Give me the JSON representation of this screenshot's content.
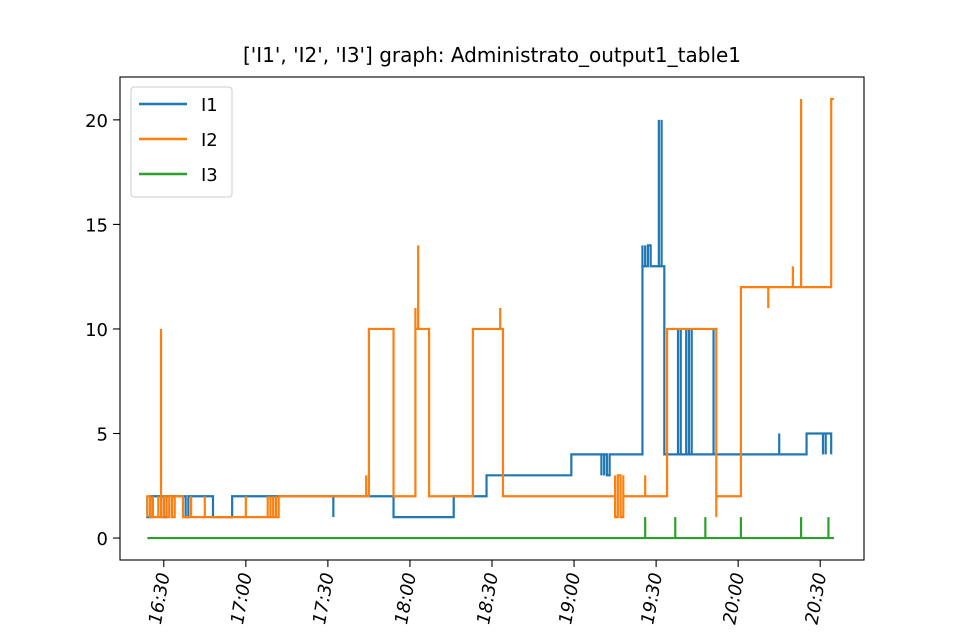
{
  "chart_data": {
    "type": "line",
    "title": "['I1', 'I2', 'I3'] graph: Administrato_output1_table1",
    "xlabel": "",
    "ylabel": "",
    "x_unit": "time (HH:MM)",
    "xlim": [
      "16:14",
      "20:46"
    ],
    "ylim": [
      -1.05,
      22.05
    ],
    "yticks": [
      0,
      5,
      10,
      15,
      20
    ],
    "xticks": [
      "16:30",
      "17:00",
      "17:30",
      "18:00",
      "18:30",
      "19:00",
      "19:30",
      "20:00",
      "20:30"
    ],
    "legend": {
      "placement": "top-left"
    },
    "grid": false,
    "series": [
      {
        "name": "I1",
        "color": "#1f77b4",
        "points": [
          [
            "16:24",
            2
          ],
          [
            "16:24",
            1
          ],
          [
            "16:25",
            1
          ],
          [
            "16:25",
            2
          ],
          [
            "16:26",
            2
          ],
          [
            "16:26",
            1
          ],
          [
            "16:26",
            2
          ],
          [
            "16:30",
            2
          ],
          [
            "16:30",
            1
          ],
          [
            "16:31",
            1
          ],
          [
            "16:31",
            2
          ],
          [
            "16:38",
            2
          ],
          [
            "16:38",
            1
          ],
          [
            "16:39",
            1
          ],
          [
            "16:39",
            2
          ],
          [
            "16:48",
            2
          ],
          [
            "16:48",
            1
          ],
          [
            "16:55",
            1
          ],
          [
            "16:55",
            2
          ],
          [
            "17:32",
            2
          ],
          [
            "17:32",
            1
          ],
          [
            "17:32",
            2
          ],
          [
            "17:54",
            2
          ],
          [
            "17:54",
            1
          ],
          [
            "18:16",
            1
          ],
          [
            "18:16",
            2
          ],
          [
            "18:28",
            2
          ],
          [
            "18:28",
            3
          ],
          [
            "18:59",
            3
          ],
          [
            "18:59",
            4
          ],
          [
            "19:10",
            4
          ],
          [
            "19:10",
            3
          ],
          [
            "19:10",
            4
          ],
          [
            "19:11",
            4
          ],
          [
            "19:11",
            3
          ],
          [
            "19:11",
            4
          ],
          [
            "19:12",
            4
          ],
          [
            "19:12",
            3
          ],
          [
            "19:13",
            3
          ],
          [
            "19:13",
            4
          ],
          [
            "19:25",
            4
          ],
          [
            "19:25",
            14
          ],
          [
            "19:25",
            13
          ],
          [
            "19:26",
            13
          ],
          [
            "19:26",
            14
          ],
          [
            "19:26",
            13
          ],
          [
            "19:27",
            13
          ],
          [
            "19:27",
            14
          ],
          [
            "19:28",
            14
          ],
          [
            "19:28",
            13
          ],
          [
            "19:31",
            13
          ],
          [
            "19:31",
            20
          ],
          [
            "19:31",
            13
          ],
          [
            "19:32",
            13
          ],
          [
            "19:32",
            20
          ],
          [
            "19:32",
            13
          ],
          [
            "19:33",
            13
          ],
          [
            "19:33",
            4
          ],
          [
            "19:38",
            4
          ],
          [
            "19:38",
            10
          ],
          [
            "19:38",
            4
          ],
          [
            "19:39",
            4
          ],
          [
            "19:39",
            10
          ],
          [
            "19:39",
            4
          ],
          [
            "19:41",
            4
          ],
          [
            "19:41",
            10
          ],
          [
            "19:41",
            4
          ],
          [
            "19:42",
            4
          ],
          [
            "19:42",
            10
          ],
          [
            "19:42",
            4
          ],
          [
            "19:43",
            4
          ],
          [
            "19:43",
            10
          ],
          [
            "19:43",
            4
          ],
          [
            "19:51",
            4
          ],
          [
            "19:51",
            10
          ],
          [
            "19:51",
            4
          ],
          [
            "20:15",
            4
          ],
          [
            "20:15",
            5
          ],
          [
            "20:15",
            4
          ],
          [
            "20:25",
            4
          ],
          [
            "20:25",
            5
          ],
          [
            "20:31",
            5
          ],
          [
            "20:31",
            4
          ],
          [
            "20:31",
            5
          ],
          [
            "20:32",
            5
          ],
          [
            "20:32",
            4
          ],
          [
            "20:32",
            5
          ],
          [
            "20:34",
            5
          ],
          [
            "20:34",
            4
          ],
          [
            "20:34",
            5
          ]
        ]
      },
      {
        "name": "I2",
        "color": "#ff7f0e",
        "points": [
          [
            "16:24",
            1
          ],
          [
            "16:24",
            2
          ],
          [
            "16:25",
            2
          ],
          [
            "16:25",
            1
          ],
          [
            "16:26",
            1
          ],
          [
            "16:26",
            2
          ],
          [
            "16:26",
            1
          ],
          [
            "16:28",
            1
          ],
          [
            "16:28",
            2
          ],
          [
            "16:28",
            1
          ],
          [
            "16:29",
            1
          ],
          [
            "16:29",
            10
          ],
          [
            "16:29",
            1
          ],
          [
            "16:30",
            1
          ],
          [
            "16:30",
            2
          ],
          [
            "16:31",
            2
          ],
          [
            "16:31",
            1
          ],
          [
            "16:32",
            1
          ],
          [
            "16:32",
            2
          ],
          [
            "16:33",
            2
          ],
          [
            "16:33",
            1
          ],
          [
            "16:34",
            1
          ],
          [
            "16:34",
            2
          ],
          [
            "16:37",
            2
          ],
          [
            "16:37",
            1
          ],
          [
            "16:40",
            1
          ],
          [
            "16:40",
            2
          ],
          [
            "16:40",
            1
          ],
          [
            "16:45",
            1
          ],
          [
            "16:45",
            2
          ],
          [
            "16:45",
            1
          ],
          [
            "17:00",
            1
          ],
          [
            "17:00",
            2
          ],
          [
            "17:00",
            1
          ],
          [
            "17:08",
            1
          ],
          [
            "17:08",
            2
          ],
          [
            "17:08",
            1
          ],
          [
            "17:09",
            1
          ],
          [
            "17:09",
            2
          ],
          [
            "17:09",
            1
          ],
          [
            "17:10",
            1
          ],
          [
            "17:10",
            2
          ],
          [
            "17:10",
            1
          ],
          [
            "17:11",
            1
          ],
          [
            "17:11",
            2
          ],
          [
            "17:11",
            1
          ],
          [
            "17:12",
            1
          ],
          [
            "17:12",
            2
          ],
          [
            "17:44",
            2
          ],
          [
            "17:44",
            3
          ],
          [
            "17:44",
            2
          ],
          [
            "17:45",
            2
          ],
          [
            "17:45",
            10
          ],
          [
            "17:54",
            10
          ],
          [
            "17:54",
            2
          ],
          [
            "18:02",
            2
          ],
          [
            "18:02",
            11
          ],
          [
            "18:02",
            10
          ],
          [
            "18:03",
            10
          ],
          [
            "18:03",
            14
          ],
          [
            "18:03",
            10
          ],
          [
            "18:07",
            10
          ],
          [
            "18:07",
            2
          ],
          [
            "18:23",
            2
          ],
          [
            "18:23",
            10
          ],
          [
            "18:33",
            10
          ],
          [
            "18:33",
            11
          ],
          [
            "18:33",
            10
          ],
          [
            "18:34",
            10
          ],
          [
            "18:34",
            2
          ],
          [
            "19:15",
            2
          ],
          [
            "19:15",
            3
          ],
          [
            "19:15",
            1
          ],
          [
            "19:16",
            1
          ],
          [
            "19:16",
            3
          ],
          [
            "19:17",
            3
          ],
          [
            "19:17",
            1
          ],
          [
            "19:18",
            1
          ],
          [
            "19:18",
            3
          ],
          [
            "19:18",
            2
          ],
          [
            "19:26",
            2
          ],
          [
            "19:26",
            3
          ],
          [
            "19:26",
            2
          ],
          [
            "19:34",
            2
          ],
          [
            "19:34",
            10
          ],
          [
            "19:52",
            10
          ],
          [
            "19:52",
            1
          ],
          [
            "19:52",
            2
          ],
          [
            "20:01",
            2
          ],
          [
            "20:01",
            12
          ],
          [
            "20:11",
            12
          ],
          [
            "20:11",
            11
          ],
          [
            "20:11",
            12
          ],
          [
            "20:20",
            12
          ],
          [
            "20:20",
            13
          ],
          [
            "20:20",
            12
          ],
          [
            "20:23",
            12
          ],
          [
            "20:23",
            21
          ],
          [
            "20:23",
            12
          ],
          [
            "20:34",
            12
          ],
          [
            "20:34",
            21
          ],
          [
            "20:35",
            21
          ]
        ]
      },
      {
        "name": "I3",
        "color": "#2ca02c",
        "points": [
          [
            "16:24",
            0
          ],
          [
            "19:26",
            0
          ],
          [
            "19:26",
            1
          ],
          [
            "19:26",
            0
          ],
          [
            "19:37",
            0
          ],
          [
            "19:37",
            1
          ],
          [
            "19:37",
            0
          ],
          [
            "19:48",
            0
          ],
          [
            "19:48",
            1
          ],
          [
            "19:48",
            0
          ],
          [
            "20:01",
            0
          ],
          [
            "20:01",
            1
          ],
          [
            "20:01",
            0
          ],
          [
            "20:23",
            0
          ],
          [
            "20:23",
            1
          ],
          [
            "20:23",
            0
          ],
          [
            "20:33",
            0
          ],
          [
            "20:33",
            1
          ],
          [
            "20:33",
            0
          ],
          [
            "20:35",
            0
          ]
        ]
      }
    ]
  }
}
